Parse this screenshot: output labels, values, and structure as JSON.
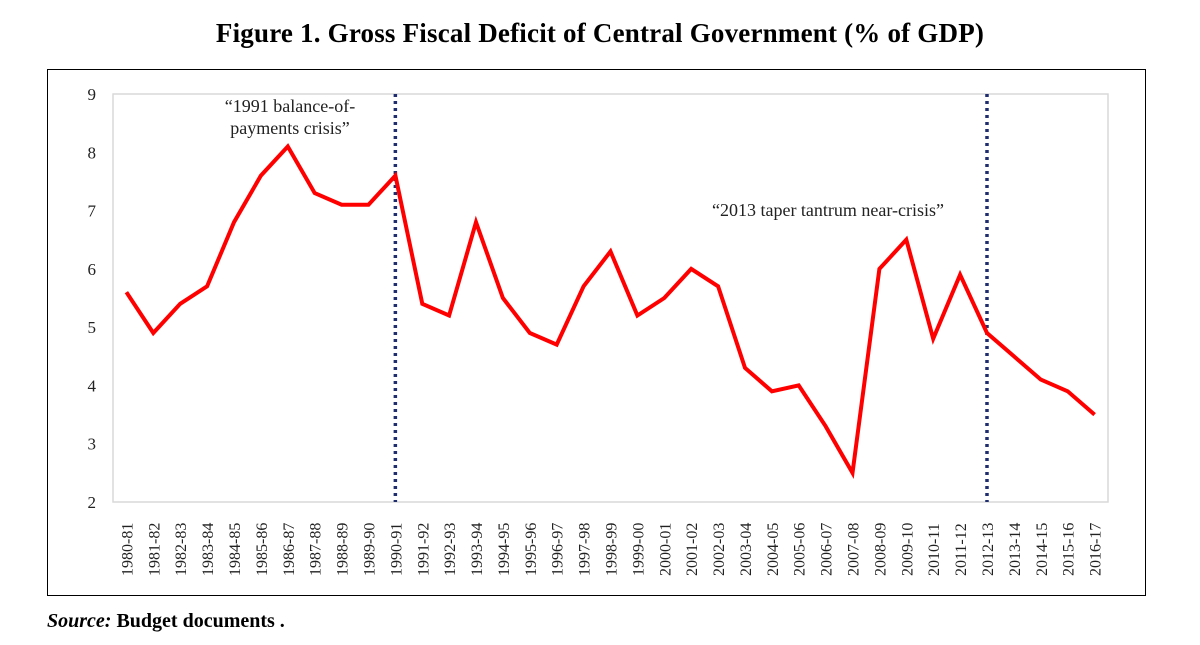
{
  "title": "Figure 1. Gross Fiscal Deficit of Central Government (% of GDP)",
  "source_label": "Source:",
  "source_text": "Budget documents .",
  "chart_data": {
    "type": "line",
    "title": "Figure 1. Gross Fiscal Deficit of Central Government (% of GDP)",
    "xlabel": "",
    "ylabel": "",
    "ylim": [
      2,
      9
    ],
    "yticks": [
      2,
      3,
      4,
      5,
      6,
      7,
      8,
      9
    ],
    "grid": false,
    "categories": [
      "1980-81",
      "1981-82",
      "1982-83",
      "1983-84",
      "1984-85",
      "1985-86",
      "1986-87",
      "1987-88",
      "1988-89",
      "1989-90",
      "1990-91",
      "1991-92",
      "1992-93",
      "1993-94",
      "1994-95",
      "1995-96",
      "1996-97",
      "1997-98",
      "1998-99",
      "1999-00",
      "2000-01",
      "2001-02",
      "2002-03",
      "2003-04",
      "2004-05",
      "2005-06",
      "2006-07",
      "2007-08",
      "2008-09",
      "2009-10",
      "2010-11",
      "2011-12",
      "2012-13",
      "2013-14",
      "2014-15",
      "2015-16",
      "2016-17"
    ],
    "series": [
      {
        "color": "#ff0000",
        "values": [
          5.6,
          4.9,
          5.4,
          5.7,
          6.8,
          7.6,
          8.1,
          7.3,
          7.1,
          7.1,
          7.6,
          5.4,
          5.2,
          6.8,
          5.5,
          4.9,
          4.7,
          5.7,
          6.3,
          5.2,
          5.5,
          6.0,
          5.7,
          4.3,
          3.9,
          4.0,
          3.3,
          2.5,
          6.0,
          6.5,
          4.8,
          5.9,
          4.9,
          4.5,
          4.1,
          3.9,
          3.5
        ]
      }
    ],
    "annotations": [
      {
        "text_lines": [
          "“1991 balance-of-",
          "payments crisis”"
        ],
        "at_category": "1990-91",
        "line_color": "#1f2d6e",
        "line_style": "dotted"
      },
      {
        "text_lines": [
          "“2013 taper tantrum near-crisis”"
        ],
        "at_category": "2012-13",
        "line_color": "#1f2d6e",
        "line_style": "dotted"
      }
    ]
  }
}
